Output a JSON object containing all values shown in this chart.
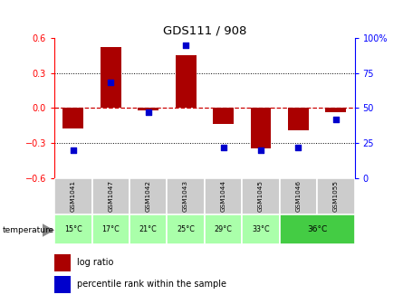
{
  "title": "GDS111 / 908",
  "samples": [
    "GSM1041",
    "GSM1047",
    "GSM1042",
    "GSM1043",
    "GSM1044",
    "GSM1045",
    "GSM1046",
    "GSM1055"
  ],
  "temperatures": [
    "15°C",
    "17°C",
    "21°C",
    "25°C",
    "29°C",
    "33°C",
    "36°C",
    "36°C"
  ],
  "log_ratios": [
    -0.18,
    0.52,
    -0.02,
    0.45,
    -0.14,
    -0.35,
    -0.19,
    -0.04
  ],
  "percentile_ranks": [
    20,
    68,
    47,
    95,
    22,
    20,
    22,
    42
  ],
  "ylim": [
    -0.6,
    0.6
  ],
  "yticks_left": [
    -0.6,
    -0.3,
    0,
    0.3,
    0.6
  ],
  "yticks_right": [
    0,
    25,
    50,
    75,
    100
  ],
  "bar_color": "#aa0000",
  "dot_color": "#0000cc",
  "zero_line_color": "#cc0000",
  "grid_color": "#000000",
  "bg_color": "#ffffff",
  "temp_color_light": "#aaffaa",
  "temp_color_dark": "#44cc44",
  "gsm_bg": "#cccccc",
  "bar_width": 0.55
}
